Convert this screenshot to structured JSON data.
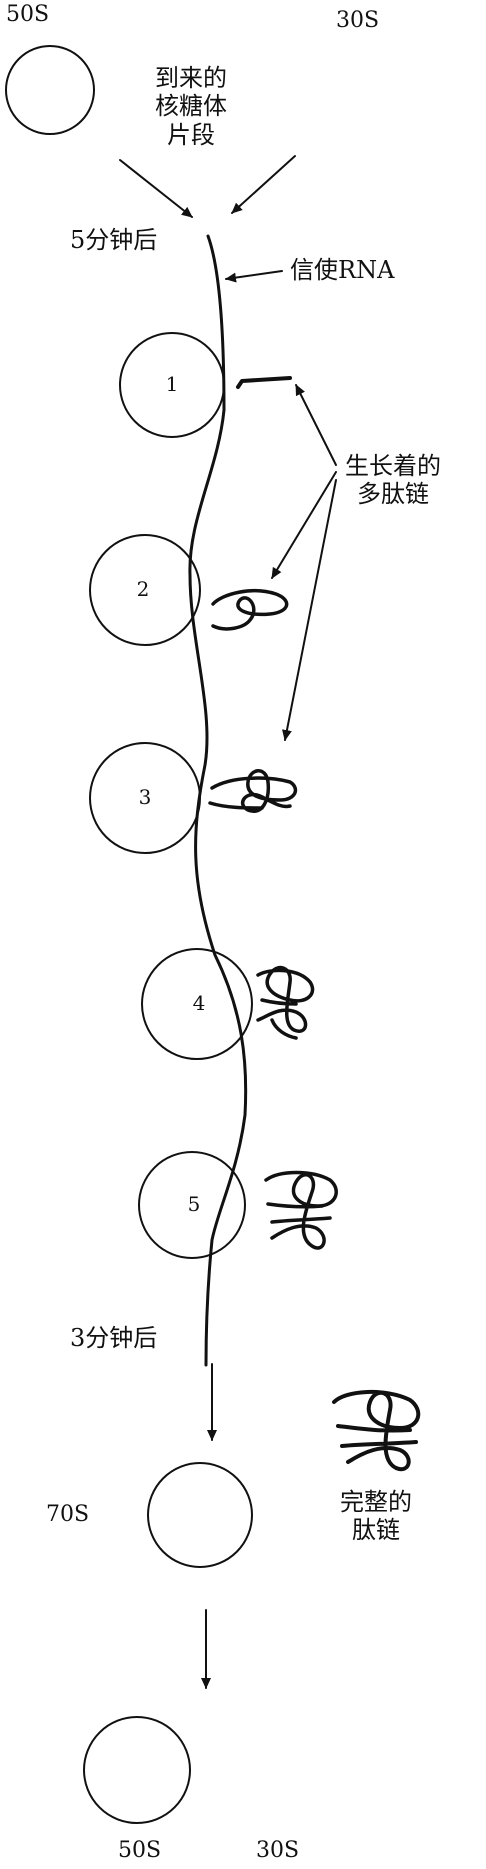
{
  "labels": {
    "top_50s": "50S",
    "top_30s": "30S",
    "incoming": [
      "到来的",
      "核糖体",
      "片段"
    ],
    "after_5min": "5分钟后",
    "mrna": "信使RNA",
    "growing": [
      "生长着的",
      "多肽链"
    ],
    "after_3min": "3分钟后",
    "s70": "70S",
    "complete": [
      "完整的",
      "肽链"
    ],
    "bottom_50s": "50S",
    "bottom_30s": "30S"
  },
  "ribosomes": [
    "1",
    "2",
    "3",
    "4",
    "5"
  ]
}
